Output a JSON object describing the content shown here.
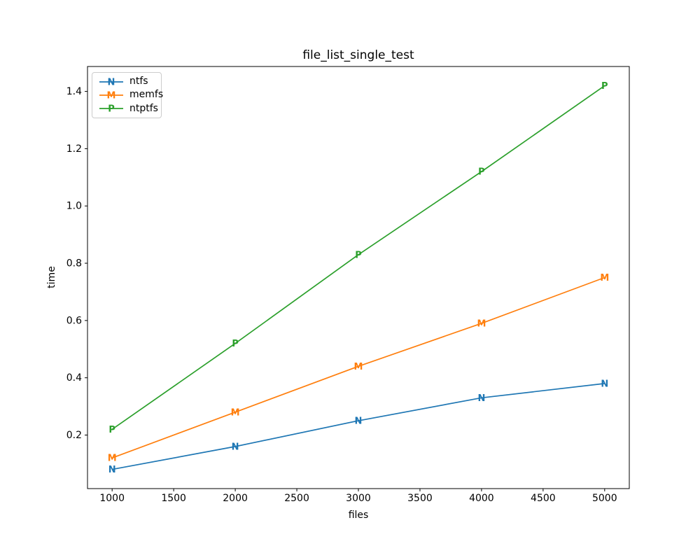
{
  "figure": {
    "background": "#ffffff",
    "spine_color": "#000000"
  },
  "chart_data": {
    "type": "line",
    "title": "file_list_single_test",
    "xlabel": "files",
    "ylabel": "time",
    "x": [
      1000,
      2000,
      3000,
      4000,
      5000
    ],
    "series": [
      {
        "name": "ntfs",
        "marker": "N",
        "color": "#1f77b4",
        "values": [
          0.08,
          0.16,
          0.25,
          0.33,
          0.38
        ]
      },
      {
        "name": "memfs",
        "marker": "M",
        "color": "#ff7f0e",
        "values": [
          0.12,
          0.28,
          0.44,
          0.59,
          0.75
        ]
      },
      {
        "name": "ntptfs",
        "marker": "P",
        "color": "#2ca02c",
        "values": [
          0.22,
          0.52,
          0.83,
          1.12,
          1.42
        ]
      }
    ],
    "xlim": [
      800,
      5200
    ],
    "ylim": [
      0.013,
      1.487
    ],
    "xticks": [
      1000,
      1500,
      2000,
      2500,
      3000,
      3500,
      4000,
      4500,
      5000
    ],
    "xticklabels": [
      "1000",
      "1500",
      "2000",
      "2500",
      "3000",
      "3500",
      "4000",
      "4500",
      "5000"
    ],
    "yticks": [
      0.2,
      0.4,
      0.6,
      0.8,
      1.0,
      1.2,
      1.4
    ],
    "yticklabels": [
      "0.2",
      "0.4",
      "0.6",
      "0.8",
      "1.0",
      "1.2",
      "1.4"
    ],
    "grid": false,
    "legend_position": "upper left"
  }
}
